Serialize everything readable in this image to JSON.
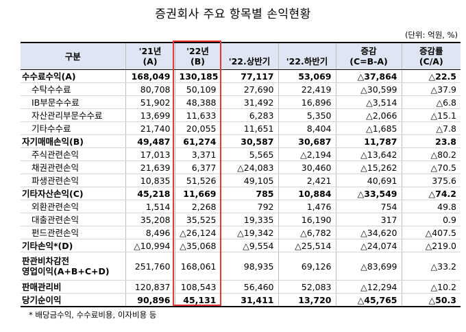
{
  "title": "증권회사 주요 항목별 손익현황",
  "unit": "(단위: 억원, %)",
  "headers": {
    "h0": "구분",
    "h1a": "'21년",
    "h1b": "(A)",
    "h2a": "'22년",
    "h2b": "(B)",
    "h3": "'22.상반기",
    "h4": "'22.하반기",
    "h5a": "증감",
    "h5b": "(C=B-A)",
    "h6a": "증감률",
    "h6b": "(C/A)"
  },
  "rows": [
    {
      "label": "수수료수익(A)",
      "v": [
        "168,049",
        "130,185",
        "77,117",
        "53,069",
        "△37,864",
        "△22.5"
      ]
    },
    {
      "label": "수탁수수료",
      "v": [
        "80,708",
        "50,109",
        "27,690",
        "22,419",
        "△30,599",
        "△37.9"
      ]
    },
    {
      "label": "IB부문수수료",
      "v": [
        "51,902",
        "48,388",
        "31,492",
        "16,896",
        "△3,514",
        "△6.8"
      ]
    },
    {
      "label": "자산관리부문수수료",
      "v": [
        "13,699",
        "11,633",
        "6,283",
        "5,350",
        "△2,066",
        "△15.1"
      ]
    },
    {
      "label": "기타수수료",
      "v": [
        "21,740",
        "20,055",
        "11,651",
        "8,404",
        "△1,685",
        "△7.8"
      ]
    },
    {
      "label": "자기매매손익(B)",
      "v": [
        "49,487",
        "61,274",
        "30,587",
        "30,687",
        "11,787",
        "23.8"
      ]
    },
    {
      "label": "주식관련손익",
      "v": [
        "17,013",
        "3,371",
        "5,565",
        "△2,194",
        "△13,642",
        "△80.2"
      ]
    },
    {
      "label": "채권관련손익",
      "v": [
        "21,639",
        "6,377",
        "△24,083",
        "30,460",
        "△15,262",
        "△70.5"
      ]
    },
    {
      "label": "파생관련손익",
      "v": [
        "10,835",
        "51,526",
        "49,105",
        "2,421",
        "40,691",
        "375.6"
      ]
    },
    {
      "label": "기타자산손익(C)",
      "v": [
        "45,218",
        "11,669",
        "785",
        "10,884",
        "△33,549",
        "△74.2"
      ]
    },
    {
      "label": "외환관련손익",
      "v": [
        "1,514",
        "2,268",
        "792",
        "1,476",
        "754",
        "49.8"
      ]
    },
    {
      "label": "대출관련손익",
      "v": [
        "35,208",
        "35,525",
        "19,335",
        "16,190",
        "317",
        "0.9"
      ]
    },
    {
      "label": "펀드관련손익",
      "v": [
        "8,496",
        "△26,124",
        "△19,342",
        "△6,782",
        "△34,620",
        "△407.5"
      ]
    },
    {
      "label": "기타손익*(D)",
      "v": [
        "△10,994",
        "△35,068",
        "△9,554",
        "△25,514",
        "△24,074",
        "△219.0"
      ]
    },
    {
      "label1": "판관비차감전",
      "label2": "영업이익(A+B+C+D)",
      "v": [
        "251,760",
        "168,061",
        "98,935",
        "69,126",
        "△83,699",
        "△33.2"
      ]
    },
    {
      "label": "판매관리비",
      "v": [
        "120,837",
        "108,543",
        "56,460",
        "52,083",
        "△12,294",
        "△10.2"
      ]
    },
    {
      "label": "당기순이익",
      "v": [
        "90,896",
        "45,131",
        "31,411",
        "13,720",
        "△45,765",
        "△50.3"
      ]
    }
  ],
  "footnote": "* 배당금수익, 수수료비용, 이자비용 등",
  "colors": {
    "header_bg": "#dfe5f2",
    "highlight_border": "#e53935"
  }
}
